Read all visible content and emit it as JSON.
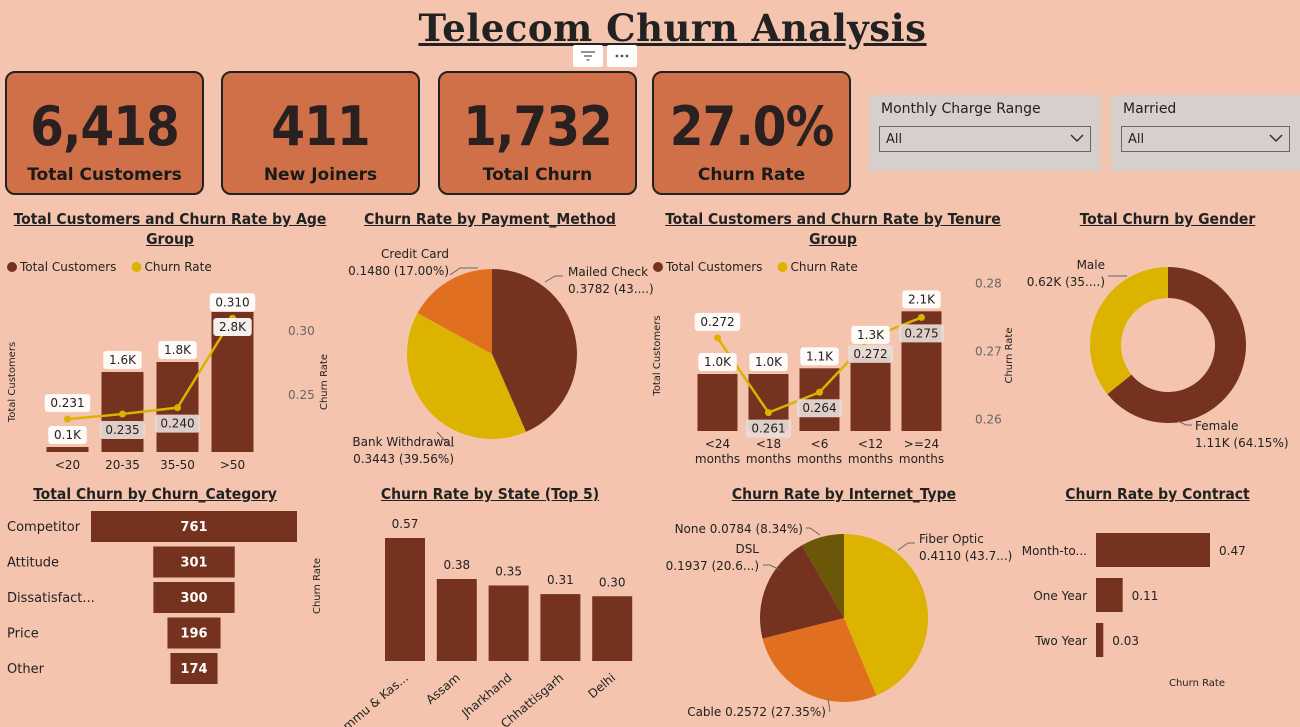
{
  "dashboard": {
    "title": "Telecom Churn Analysis"
  },
  "toolbar": {
    "filter_icon": "filter-icon",
    "more_icon": "more-icon"
  },
  "kpis": [
    {
      "value": "6,418",
      "label": "Total Customers"
    },
    {
      "value": "411",
      "label": "New Joiners"
    },
    {
      "value": "1,732",
      "label": "Total Churn"
    },
    {
      "value": "27.0%",
      "label": "Churn Rate"
    }
  ],
  "slicers": [
    {
      "title": "Monthly Charge Range",
      "value": "All"
    },
    {
      "title": "Married",
      "value": "All"
    }
  ],
  "colors": {
    "brown": "#75321f",
    "gold": "#dcb300",
    "orange": "#e0701f",
    "olive": "#6b5708",
    "kpi": "#cf7048",
    "bg": "#f4c4ae"
  },
  "chart_data": [
    {
      "id": "age",
      "type": "bar",
      "title": "Total Customers and Churn Rate by Age Group",
      "legend": [
        "Total Customers",
        "Churn Rate"
      ],
      "categories": [
        "<20",
        "20-35",
        "35-50",
        ">50"
      ],
      "series": [
        {
          "name": "Total Customers",
          "values": [
            0.1,
            1.6,
            1.8,
            2.8
          ],
          "labels": [
            "0.1K",
            "1.6K",
            "1.8K",
            "2.8K"
          ]
        },
        {
          "name": "Churn Rate",
          "values": [
            0.231,
            0.235,
            0.24,
            0.31
          ],
          "labels": [
            "0.231",
            "0.235",
            "0.240",
            "0.310"
          ]
        }
      ],
      "ylabel": "Total Customers",
      "y2label": "Churn Rate",
      "y2ticks": [
        "0.30",
        "0.25"
      ]
    },
    {
      "id": "payment",
      "type": "pie",
      "title": "Churn Rate by Payment_Method",
      "slices": [
        {
          "name": "Mailed Check",
          "value": 0.3782,
          "label": "0.3782 (43....)"
        },
        {
          "name": "Bank Withdrawal",
          "value": 0.3443,
          "label": "0.3443 (39.56%)"
        },
        {
          "name": "Credit Card",
          "value": 0.148,
          "label": "0.1480 (17.00%)"
        }
      ]
    },
    {
      "id": "tenure",
      "type": "bar",
      "title": "Total Customers and Churn Rate by Tenure Group",
      "legend": [
        "Total Customers",
        "Churn Rate"
      ],
      "categories": [
        "<24 months",
        "<18 months",
        "<6 months",
        "<12 months",
        ">=24 months"
      ],
      "series": [
        {
          "name": "Total Customers",
          "values": [
            1.0,
            1.0,
            1.1,
            1.3,
            2.1
          ],
          "labels": [
            "1.0K",
            "1.0K",
            "1.1K",
            "1.3K",
            "2.1K"
          ]
        },
        {
          "name": "Churn Rate",
          "values": [
            0.272,
            0.261,
            0.264,
            0.272,
            0.275
          ],
          "labels": [
            "0.272",
            "0.261",
            "0.264",
            "0.272",
            "0.275"
          ]
        }
      ],
      "ylabel": "Total Customers",
      "y2label": "Churn Rate",
      "y2ticks": [
        "0.28",
        "0.27",
        "0.26"
      ]
    },
    {
      "id": "gender",
      "type": "pie",
      "title": "Total Churn by Gender",
      "slices": [
        {
          "name": "Female",
          "value": 1.11,
          "label": "1.11K (64.15%)"
        },
        {
          "name": "Male",
          "value": 0.62,
          "label": "0.62K (35....)"
        }
      ]
    },
    {
      "id": "category",
      "type": "bar",
      "title": "Total Churn by Churn_Category",
      "categories": [
        "Competitor",
        "Attitude",
        "Dissatisfact...",
        "Price",
        "Other"
      ],
      "values": [
        761,
        301,
        300,
        196,
        174
      ]
    },
    {
      "id": "state",
      "type": "bar",
      "title": "Churn Rate by State (Top 5)",
      "categories": [
        "Jammu & Kas...",
        "Assam",
        "Jharkhand",
        "Chhattisgarh",
        "Delhi"
      ],
      "values": [
        0.57,
        0.38,
        0.35,
        0.31,
        0.3
      ],
      "labels": [
        "0.57",
        "0.38",
        "0.35",
        "0.31",
        "0.30"
      ],
      "ylabel": "Churn Rate"
    },
    {
      "id": "internet",
      "type": "pie",
      "title": "Churn Rate by Internet_Type",
      "slices": [
        {
          "name": "Fiber Optic",
          "value": 0.411,
          "label": "0.4110 (43.7...)"
        },
        {
          "name": "Cable",
          "value": 0.2572,
          "label": "0.2572 (27.35%)"
        },
        {
          "name": "DSL",
          "value": 0.1937,
          "label": "0.1937 (20.6...)"
        },
        {
          "name": "None",
          "value": 0.0784,
          "label": "0.0784 (8.34%)"
        }
      ]
    },
    {
      "id": "contract",
      "type": "bar",
      "title": "Churn Rate by Contract",
      "categories": [
        "Month-to...",
        "One Year",
        "Two Year"
      ],
      "values": [
        0.47,
        0.11,
        0.03
      ],
      "labels": [
        "0.47",
        "0.11",
        "0.03"
      ],
      "xlabel": "Churn Rate"
    }
  ]
}
